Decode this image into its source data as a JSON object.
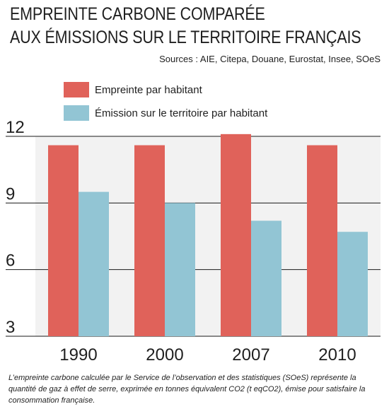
{
  "title_lines": [
    "EMPREINTE CARBONE COMPARÉE",
    "AUX ÉMISSIONS SUR LE TERRITOIRE FRANÇAIS"
  ],
  "sources": "Sources : AIE, Citepa, Douane, Eurostat, Insee, SOeS",
  "caption": "L’empreinte carbone calculée par le Service de l’observation et des statistiques (SOeS) représente la quantité de gaz à effet de serre, exprimée en tonnes équivalent CO2 (t eqCO2), émise pour satisfaire la consommation française.",
  "colors": {
    "empreinte": "#e0625a",
    "emission": "#92c5d4",
    "grid": "#1a1a1a",
    "plot_bg": "#f2f2f2"
  },
  "chart_data": {
    "type": "bar",
    "categories": [
      "1990",
      "2000",
      "2007",
      "2010"
    ],
    "series": [
      {
        "name": "Empreinte par habitant",
        "values": [
          11.6,
          11.6,
          12.1,
          11.6
        ]
      },
      {
        "name": "Émission sur le territoire par habitant",
        "values": [
          9.5,
          9.0,
          8.2,
          7.7
        ]
      }
    ],
    "title": "",
    "xlabel": "",
    "ylabel": "",
    "ylim": [
      3,
      12
    ],
    "yticks": [
      3,
      6,
      9,
      12
    ],
    "grid": true,
    "legend": "top-left"
  }
}
